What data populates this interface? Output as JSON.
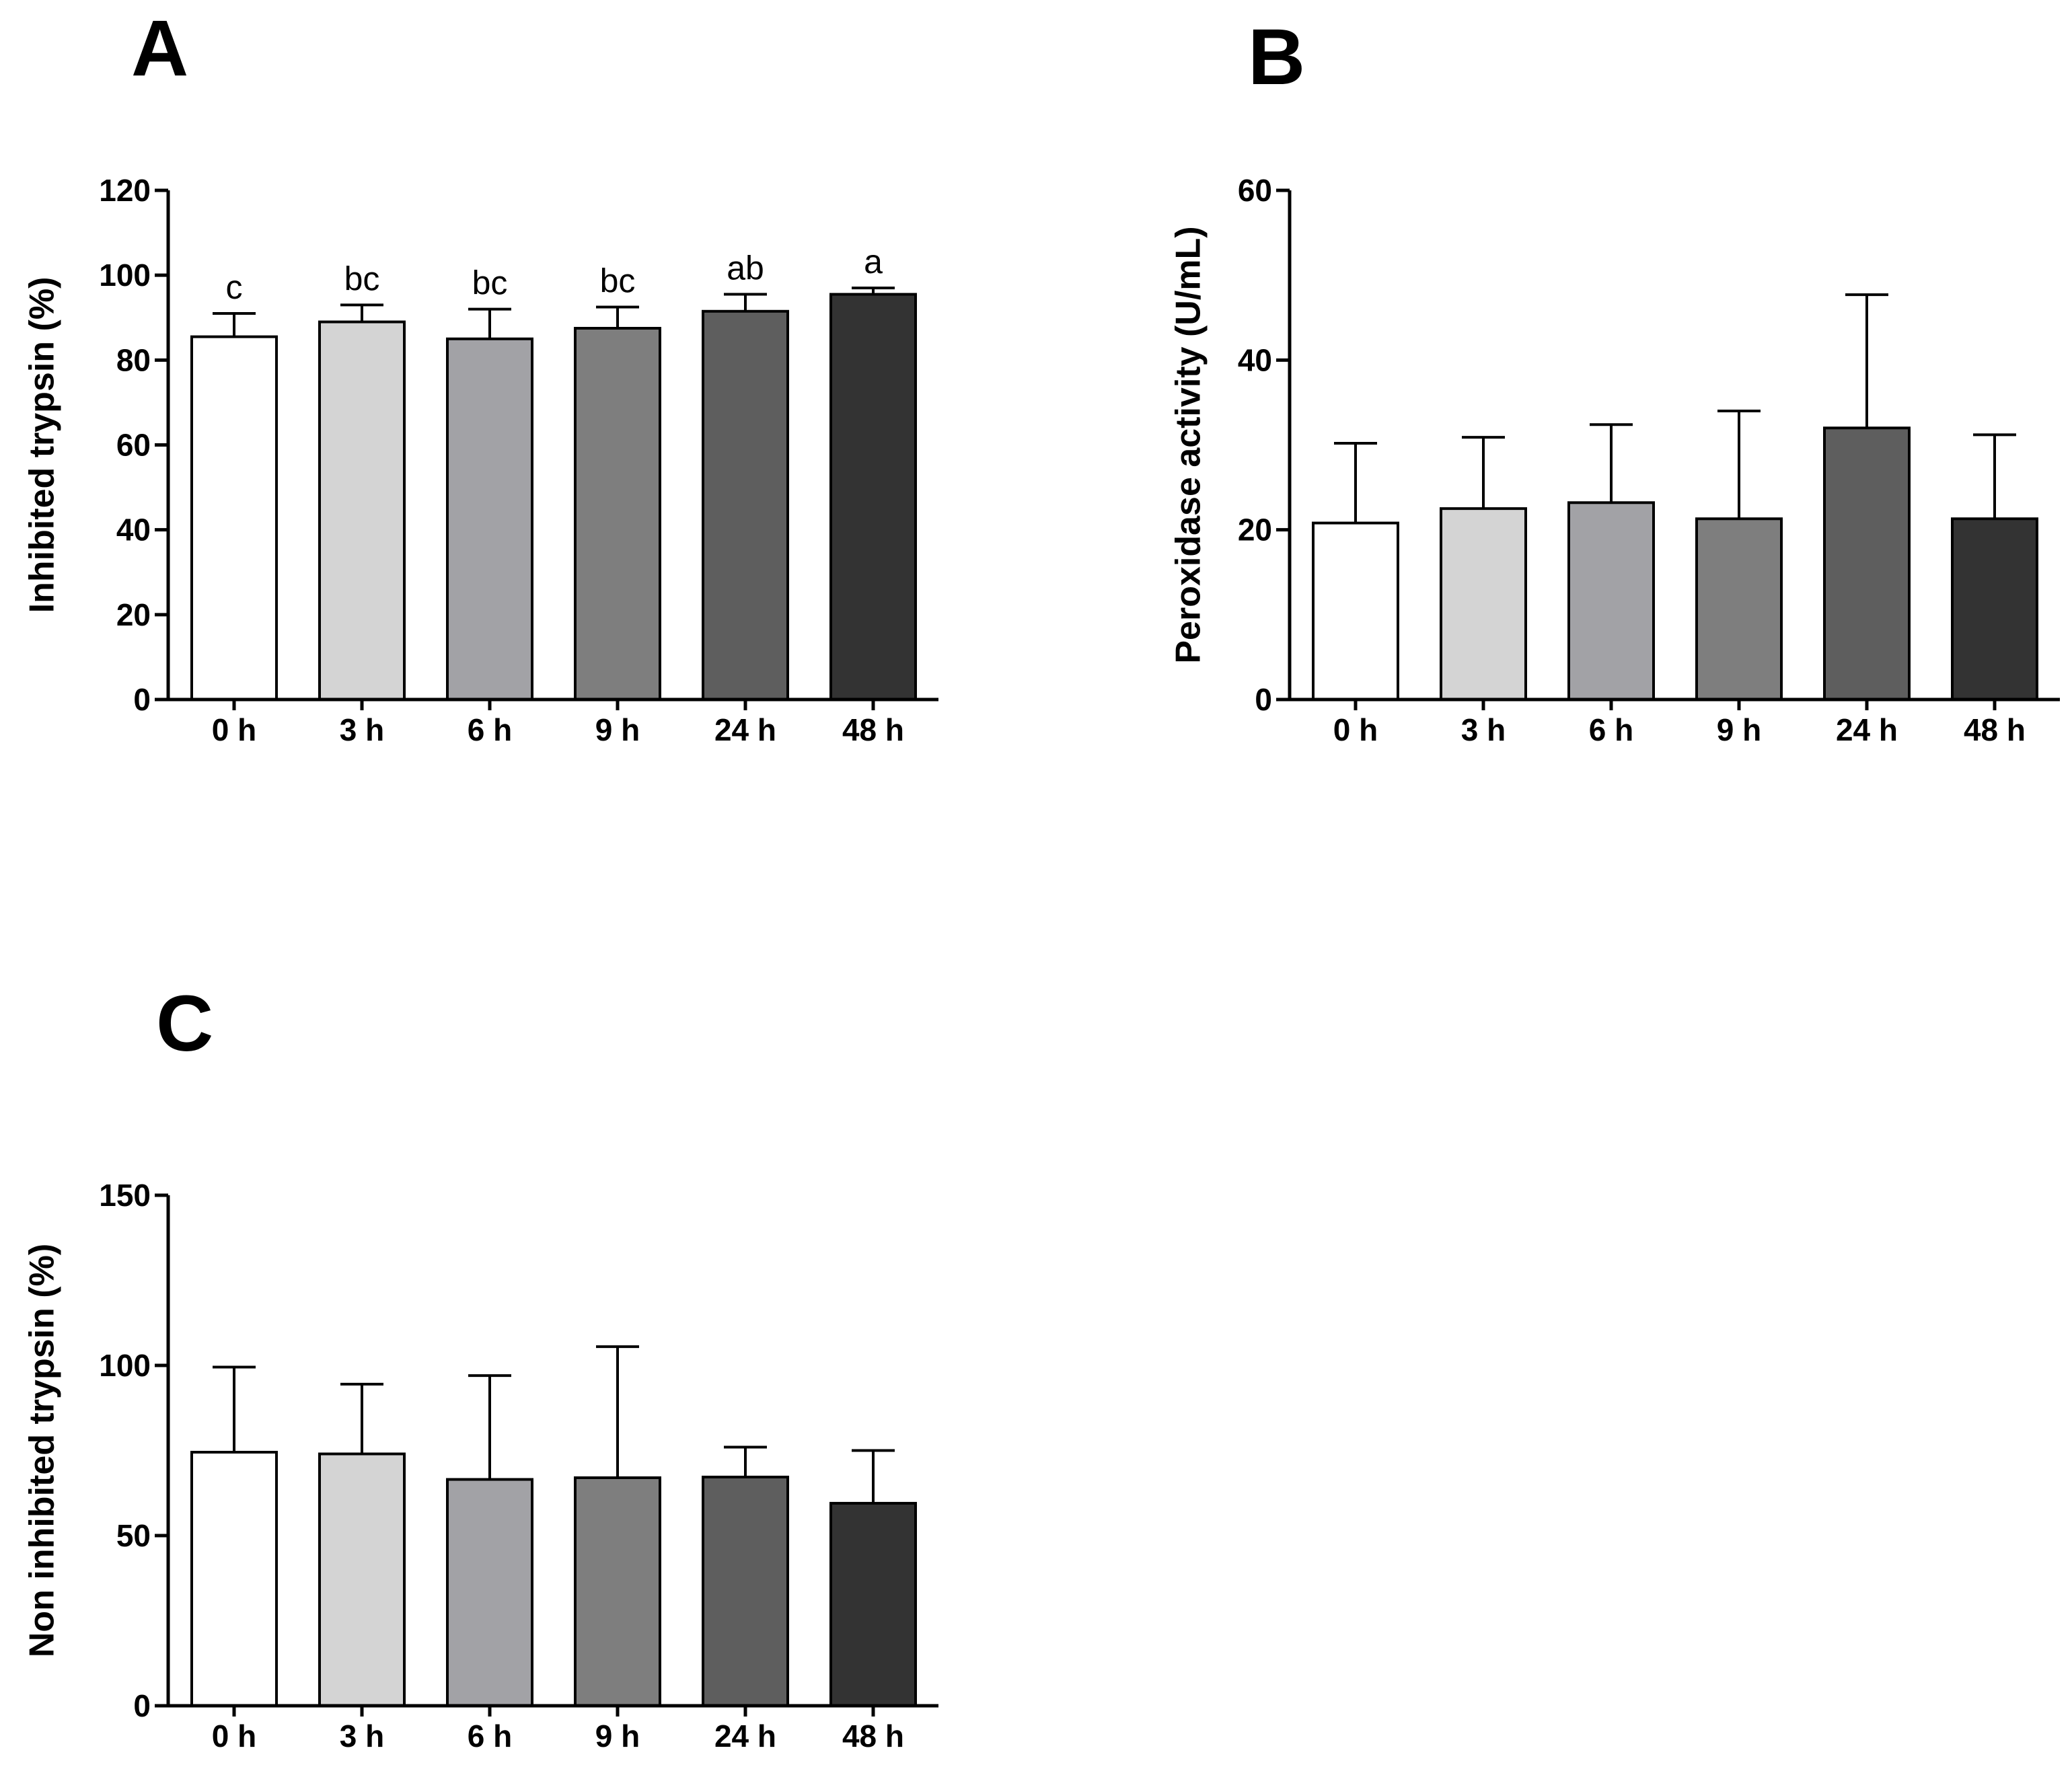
{
  "chart_data": [
    {
      "panel": "A",
      "type": "bar",
      "title": "",
      "xlabel": "",
      "ylabel": "Inhibited trypsin (%)",
      "ylim": [
        0,
        120
      ],
      "yticks": [
        0,
        20,
        40,
        60,
        80,
        100,
        120
      ],
      "categories": [
        "0 h",
        "3 h",
        "6 h",
        "9 h",
        "24 h",
        "48 h"
      ],
      "values": [
        85.5,
        89,
        85,
        87.5,
        91.5,
        95.5
      ],
      "errors": [
        5.5,
        4,
        7,
        5,
        4,
        1.5
      ],
      "labels": [
        "c",
        "bc",
        "bc",
        "bc",
        "ab",
        "a"
      ],
      "colors": [
        "#ffffff",
        "#d4d4d4",
        "#a2a2a6",
        "#7e7e7e",
        "#5e5e5e",
        "#333333"
      ]
    },
    {
      "panel": "B",
      "type": "bar",
      "title": "",
      "xlabel": "",
      "ylabel": "Peroxidase activity (U/mL)",
      "ylim": [
        0,
        60
      ],
      "yticks": [
        0,
        20,
        40,
        60
      ],
      "categories": [
        "0 h",
        "3 h",
        "6 h",
        "9 h",
        "24 h",
        "48 h"
      ],
      "values": [
        20.8,
        22.5,
        23.2,
        21.3,
        32,
        21.3
      ],
      "errors": [
        9.4,
        8.4,
        9.2,
        12.7,
        15.7,
        9.9
      ],
      "colors": [
        "#ffffff",
        "#d4d4d4",
        "#a2a2a6",
        "#7e7e7e",
        "#5e5e5e",
        "#333333"
      ]
    },
    {
      "panel": "C",
      "type": "bar",
      "title": "",
      "xlabel": "",
      "ylabel": "Non inhibited trypsin (%)",
      "ylim": [
        0,
        150
      ],
      "yticks": [
        0,
        50,
        100,
        150
      ],
      "categories": [
        "0 h",
        "3 h",
        "6 h",
        "9 h",
        "24 h",
        "48 h"
      ],
      "values": [
        74.5,
        74,
        66.5,
        67,
        67.2,
        59.5
      ],
      "errors": [
        25,
        20.5,
        30.5,
        38.5,
        8.8,
        15.5
      ],
      "colors": [
        "#ffffff",
        "#d4d4d4",
        "#a2a2a6",
        "#7e7e7e",
        "#5e5e5e",
        "#333333"
      ]
    }
  ]
}
